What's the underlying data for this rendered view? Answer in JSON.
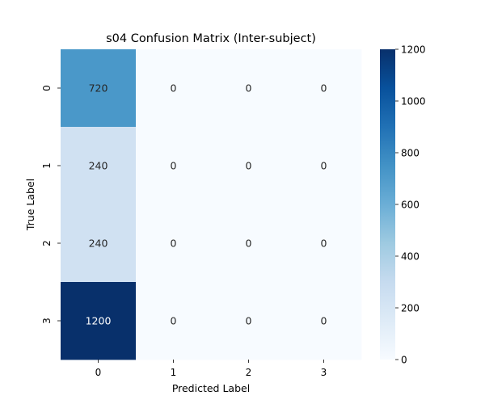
{
  "chart_data": {
    "type": "heatmap",
    "title": "s04 Confusion Matrix (Inter-subject)",
    "xlabel": "Predicted Label",
    "ylabel": "True Label",
    "x_categories": [
      "0",
      "1",
      "2",
      "3"
    ],
    "y_categories": [
      "0",
      "1",
      "2",
      "3"
    ],
    "values": [
      [
        720,
        0,
        0,
        0
      ],
      [
        240,
        0,
        0,
        0
      ],
      [
        240,
        0,
        0,
        0
      ],
      [
        1200,
        0,
        0,
        0
      ]
    ],
    "colorbar": {
      "min": 0,
      "max": 1200,
      "ticks": [
        0,
        200,
        400,
        600,
        800,
        1000,
        1200
      ],
      "colormap": "Blues"
    }
  }
}
